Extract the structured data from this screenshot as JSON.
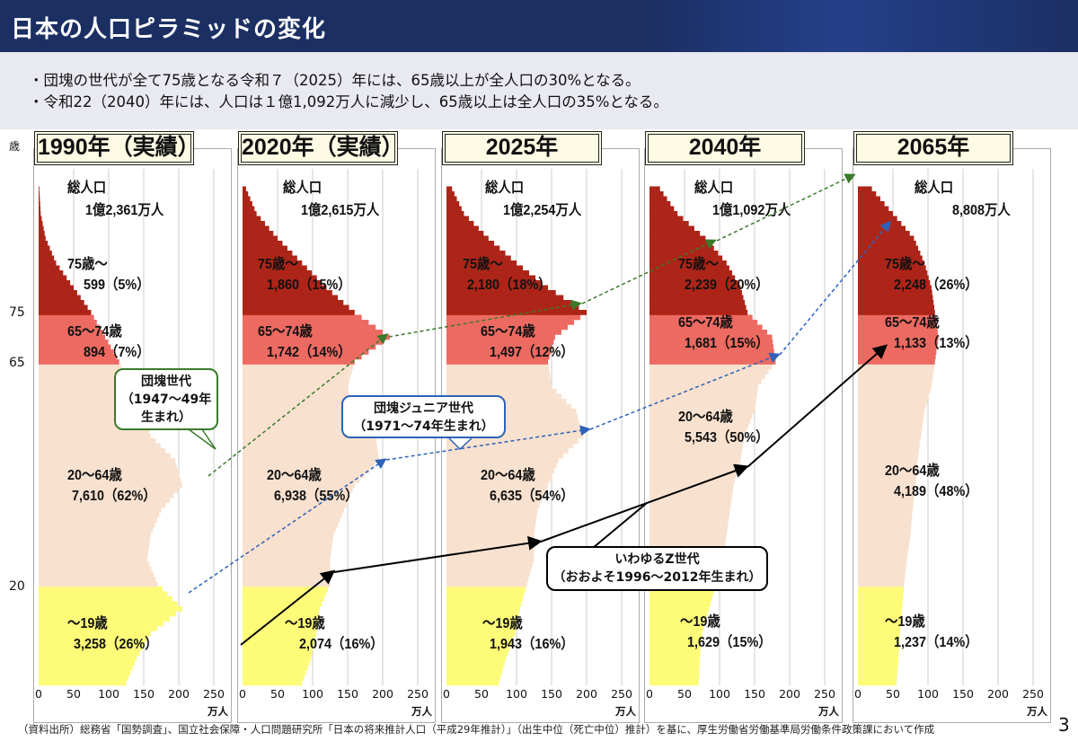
{
  "header": {
    "title": "日本の人口ピラミッドの変化"
  },
  "bullets": [
    "・団塊の世代が全て75歳となる令和７（2025）年には、65歳以上が全人口の30%となる。",
    "・令和22（2040）年には、人口は１億1,092万人に減少し、65歳以上は全人口の35%となる。"
  ],
  "age_axis": {
    "unit": "歳",
    "ticks": [
      "75",
      "65",
      "20"
    ]
  },
  "x_ticks": [
    "0",
    "50",
    "100",
    "150",
    "200",
    "250"
  ],
  "x_unit": "万人",
  "callouts": {
    "dankai": [
      "団塊世代",
      "（1947〜49年",
      "生まれ）"
    ],
    "junior": [
      "団塊ジュニア世代",
      "（1971〜74年生まれ）"
    ],
    "genz": [
      "いわゆるZ世代",
      "（おおよそ1996〜2012年生まれ）"
    ]
  },
  "footer": "（資料出所）総務省「国勢調査」、国立社会保障・人口問題研究所「日本の将来推計人口（平成29年推計）」（出生中位（死亡中位）推計）を基に、厚生労働省労働基準局労働条件政策課において作成",
  "page_number": "3",
  "colors": {
    "u19": "#fdfb78",
    "a20_64": "#f8e1cf",
    "a65_74": "#ec6a61",
    "a75": "#ad2518"
  },
  "chart_data": {
    "type": "bar",
    "orientation": "horizontal population pyramid (one side)",
    "xlabel": "万人",
    "ylabel": "歳",
    "xlim": [
      0,
      250
    ],
    "profile_ages": [
      0,
      5,
      10,
      15,
      20,
      25,
      30,
      35,
      40,
      45,
      50,
      55,
      60,
      65,
      70,
      75,
      80,
      85,
      90,
      95,
      100
    ],
    "panels": [
      {
        "title": "1990年（実績）",
        "total_label": "総人口",
        "total": "1億2,361万人",
        "groups": [
          {
            "label": "75歳〜",
            "value": "599（5%）"
          },
          {
            "label": "65〜74歳",
            "value": "894（7%）"
          },
          {
            "label": "20〜64歳",
            "value": "7,610（62%）"
          },
          {
            "label": "〜19歳",
            "value": "3,258（26%）"
          }
        ],
        "profile": [
          125,
          140,
          160,
          205,
          170,
          155,
          160,
          175,
          205,
          195,
          160,
          150,
          130,
          115,
          95,
          75,
          50,
          25,
          10,
          3,
          1
        ]
      },
      {
        "title": "2020年（実績）",
        "total_label": "総人口",
        "total": "1億2,615万人",
        "groups": [
          {
            "label": "75歳〜",
            "value": "1,860（15%）"
          },
          {
            "label": "65〜74歳",
            "value": "1,742（14%）"
          },
          {
            "label": "20〜64歳",
            "value": "6,938（55%）"
          },
          {
            "label": "〜19歳",
            "value": "2,074（16%）"
          }
        ],
        "profile": [
          85,
          98,
          105,
          110,
          125,
          125,
          130,
          145,
          160,
          195,
          190,
          155,
          150,
          160,
          210,
          160,
          120,
          85,
          50,
          20,
          5
        ]
      },
      {
        "title": "2025年",
        "total_label": "総人口",
        "total": "1億2,254万人",
        "groups": [
          {
            "label": "75歳〜",
            "value": "2,180（18%）"
          },
          {
            "label": "65〜74歳",
            "value": "1,497（12%）"
          },
          {
            "label": "20〜64歳",
            "value": "6,635（54%）"
          },
          {
            "label": "〜19歳",
            "value": "1,943（16%）"
          }
        ],
        "profile": [
          75,
          85,
          98,
          105,
          115,
          125,
          125,
          130,
          145,
          160,
          195,
          185,
          150,
          145,
          155,
          200,
          145,
          100,
          60,
          25,
          8
        ]
      },
      {
        "title": "2040年",
        "total_label": "総人口",
        "total": "1億1,092万人",
        "groups": [
          {
            "label": "75歳〜",
            "value": "2,239（20%）"
          },
          {
            "label": "65〜74歳",
            "value": "1,681（15%）"
          },
          {
            "label": "20〜64歳",
            "value": "5,543（50%）"
          },
          {
            "label": "〜19歳",
            "value": "1,629（15%）"
          }
        ],
        "profile": [
          70,
          72,
          75,
          85,
          95,
          105,
          110,
          115,
          120,
          130,
          135,
          150,
          155,
          180,
          175,
          140,
          130,
          110,
          80,
          40,
          15
        ]
      },
      {
        "title": "2065年",
        "total_label": "総人口",
        "total": "8,808万人",
        "groups": [
          {
            "label": "75歳〜",
            "value": "2,248（26%）"
          },
          {
            "label": "65〜74歳",
            "value": "1,133（13%）"
          },
          {
            "label": "20〜64歳",
            "value": "4,189（48%）"
          },
          {
            "label": "〜19歳",
            "value": "1,237（14%）"
          }
        ],
        "profile": [
          55,
          58,
          60,
          63,
          66,
          70,
          75,
          78,
          82,
          85,
          90,
          95,
          105,
          110,
          115,
          110,
          105,
          95,
          80,
          50,
          20
        ]
      }
    ]
  }
}
